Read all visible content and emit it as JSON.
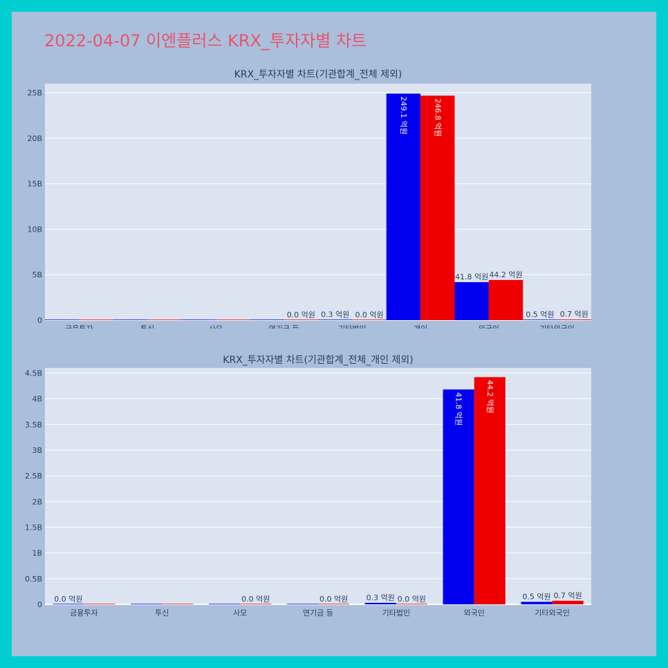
{
  "page_title": "2022-04-07 이엔플러스 KRX_투자자별 차트",
  "colors": {
    "border": "#00ced1",
    "background": "#aabfdc",
    "plot_bg": "#dce4f2",
    "title": "#e8566a",
    "series_a": "#0000ee",
    "series_b": "#ee0000"
  },
  "chart_data": [
    {
      "type": "bar",
      "title": "KRX_투자자별 차트(기관합계_전체 제외)",
      "categories": [
        "금융투자",
        "투신",
        "사모",
        "연기금 등",
        "기타법인",
        "개인",
        "외국인",
        "기타외국인"
      ],
      "series": [
        {
          "color": "#0000ee",
          "values": [
            0,
            0,
            0,
            0,
            30000000,
            24910000000,
            4180000000,
            50000000
          ],
          "labels": [
            "",
            "",
            "",
            "",
            "0.3 억원",
            "249.1 억원",
            "41.8 억원",
            "0.5 억원"
          ]
        },
        {
          "color": "#ee0000",
          "values": [
            0,
            0,
            0,
            0,
            0,
            24680000000,
            4420000000,
            70000000
          ],
          "labels": [
            "",
            "",
            "",
            "0.0 억원",
            "0.0 억원",
            "246.8 억원",
            "44.2 억원",
            "0.7 억원"
          ]
        }
      ],
      "ylim": [
        0,
        26000000000
      ],
      "yticks": [
        0,
        5000000000,
        10000000000,
        15000000000,
        20000000000,
        25000000000
      ],
      "ytick_labels": [
        "0",
        "5B",
        "10B",
        "15B",
        "20B",
        "25B"
      ],
      "grid": true,
      "legend": "none"
    },
    {
      "type": "bar",
      "title": "KRX_투자자별 차트(기관합계_전체_개인 제외)",
      "categories": [
        "금융투자",
        "투신",
        "사모",
        "연기금 등",
        "기타법인",
        "외국인",
        "기타외국인"
      ],
      "series": [
        {
          "color": "#0000ee",
          "values": [
            0,
            0,
            0,
            0,
            30000000,
            4180000000,
            50000000
          ],
          "labels": [
            "0.0 억원",
            "",
            "",
            "",
            "0.3 억원",
            "41.8 억원",
            "0.5 억원"
          ]
        },
        {
          "color": "#ee0000",
          "values": [
            0,
            0,
            0,
            0,
            0,
            4420000000,
            70000000
          ],
          "labels": [
            "",
            "",
            "0.0 억원",
            "0.0 억원",
            "0.0 억원",
            "44.2 억원",
            "0.7 억원"
          ]
        }
      ],
      "ylim": [
        0,
        4600000000
      ],
      "yticks": [
        0,
        500000000,
        1000000000,
        1500000000,
        2000000000,
        2500000000,
        3000000000,
        3500000000,
        4000000000,
        4500000000
      ],
      "ytick_labels": [
        "0",
        "0.5B",
        "1B",
        "1.5B",
        "2B",
        "2.5B",
        "3B",
        "3.5B",
        "4B",
        "4.5B"
      ],
      "grid": true,
      "legend": "none"
    }
  ]
}
